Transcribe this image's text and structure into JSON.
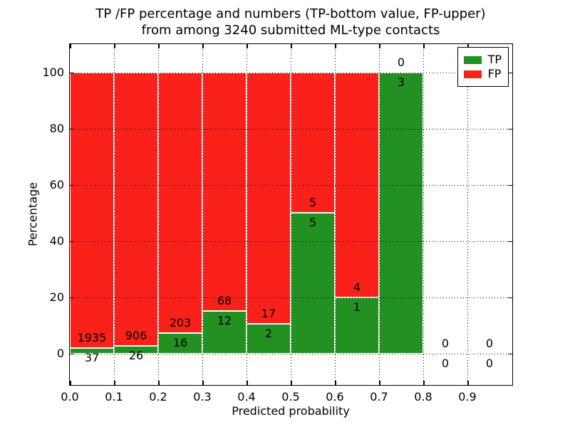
{
  "chart_data": {
    "type": "bar",
    "stacked": true,
    "normalized_to_percent": true,
    "title_line1": "TP /FP percentage and numbers (TP-bottom value, FP-upper)",
    "title_line2": "from among 3240 submitted ML-type contacts",
    "xlabel": "Predicted probability",
    "ylabel": "Percentage",
    "total_contacts": 3240,
    "xlim": [
      0.0,
      1.0
    ],
    "ylim": [
      -11,
      110
    ],
    "grid": true,
    "categories": [
      "0.0-0.1",
      "0.1-0.2",
      "0.2-0.3",
      "0.3-0.4",
      "0.4-0.5",
      "0.5-0.6",
      "0.6-0.7",
      "0.7-0.8",
      "0.8-0.9",
      "0.9-1.0"
    ],
    "bin_edges": [
      0.0,
      0.1,
      0.2,
      0.3,
      0.4,
      0.5,
      0.6,
      0.7,
      0.8,
      0.9,
      1.0
    ],
    "series": [
      {
        "name": "TP",
        "color": "#229122",
        "values": [
          37,
          26,
          16,
          12,
          2,
          5,
          1,
          3,
          0,
          0
        ]
      },
      {
        "name": "FP",
        "color": "#fb211b",
        "values": [
          1935,
          906,
          203,
          68,
          17,
          5,
          4,
          0,
          0,
          0
        ]
      }
    ],
    "xticks": [
      {
        "v": 0.0,
        "label": "0.0"
      },
      {
        "v": 0.1,
        "label": "0.1"
      },
      {
        "v": 0.2,
        "label": "0.2"
      },
      {
        "v": 0.3,
        "label": "0.3"
      },
      {
        "v": 0.4,
        "label": "0.4"
      },
      {
        "v": 0.5,
        "label": "0.5"
      },
      {
        "v": 0.6,
        "label": "0.6"
      },
      {
        "v": 0.7,
        "label": "0.7"
      },
      {
        "v": 0.8,
        "label": "0.8"
      },
      {
        "v": 0.9,
        "label": "0.9"
      }
    ],
    "yticks": [
      {
        "v": 0,
        "label": "0"
      },
      {
        "v": 20,
        "label": "20"
      },
      {
        "v": 40,
        "label": "40"
      },
      {
        "v": 60,
        "label": "60"
      },
      {
        "v": 80,
        "label": "80"
      },
      {
        "v": 100,
        "label": "100"
      }
    ],
    "legend": {
      "position": "upper right",
      "items": [
        {
          "name": "TP",
          "color": "#229122"
        },
        {
          "name": "FP",
          "color": "#fb211b"
        }
      ]
    }
  }
}
